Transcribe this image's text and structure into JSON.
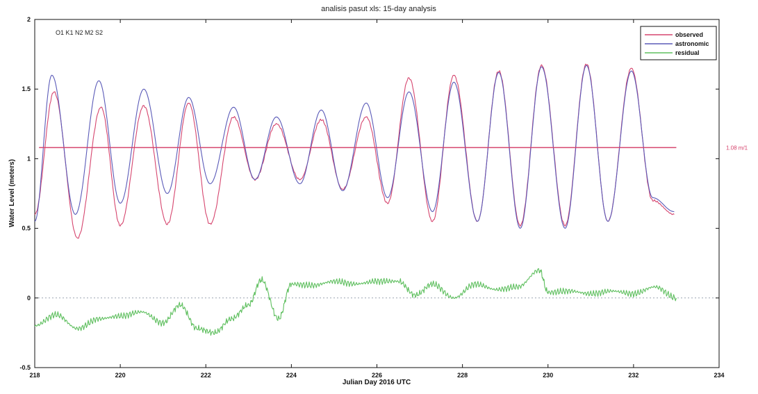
{
  "chart_data": {
    "type": "line",
    "title": "analisis pasut xls: 15-day analysis",
    "constituents_label": "O1 K1 N2 M2 S2",
    "xlabel": "Julian Day 2016 UTC",
    "ylabel": "Water Level (meters)",
    "xlim": [
      218,
      234
    ],
    "ylim": [
      -0.5,
      2
    ],
    "xticks": [
      218,
      220,
      222,
      224,
      226,
      228,
      230,
      232,
      234
    ],
    "yticks": [
      -0.5,
      0,
      0.5,
      1,
      1.5,
      2
    ],
    "ytick_labels": [
      "-0.5",
      "0",
      "0.5",
      "1",
      "1.5",
      "2"
    ],
    "grid": false,
    "legend_position": "top-right",
    "mean_level": 1.08,
    "mean_label": "1.08 m/1",
    "series": [
      {
        "name": "observed",
        "color": "#d6456e",
        "x": [
          218,
          218.45,
          219.0,
          219.55,
          220.0,
          220.55,
          221.1,
          221.6,
          222.1,
          222.65,
          223.15,
          223.65,
          224.2,
          224.7,
          225.2,
          225.75,
          226.25,
          226.75,
          227.3,
          227.8,
          228.35,
          228.85,
          229.35,
          229.85,
          230.4,
          230.9,
          231.4,
          231.95,
          232.45,
          232.95
        ],
        "values": [
          0.6,
          1.48,
          0.43,
          1.37,
          0.52,
          1.38,
          0.53,
          1.4,
          0.53,
          1.3,
          0.85,
          1.25,
          0.85,
          1.28,
          0.78,
          1.3,
          0.68,
          1.58,
          0.55,
          1.6,
          0.55,
          1.63,
          0.52,
          1.67,
          0.52,
          1.68,
          0.55,
          1.65,
          0.7,
          0.6
        ]
      },
      {
        "name": "astronomic",
        "color": "#5a5ab8",
        "x": [
          218,
          218.4,
          218.95,
          219.5,
          220.0,
          220.55,
          221.1,
          221.6,
          222.1,
          222.65,
          223.15,
          223.65,
          224.2,
          224.7,
          225.2,
          225.75,
          226.25,
          226.75,
          227.3,
          227.8,
          228.35,
          228.85,
          229.35,
          229.85,
          230.4,
          230.9,
          231.4,
          231.95,
          232.45,
          232.95
        ],
        "values": [
          0.55,
          1.6,
          0.6,
          1.56,
          0.68,
          1.5,
          0.75,
          1.44,
          0.82,
          1.37,
          0.85,
          1.3,
          0.82,
          1.35,
          0.77,
          1.4,
          0.72,
          1.48,
          0.62,
          1.55,
          0.55,
          1.62,
          0.5,
          1.66,
          0.5,
          1.67,
          0.55,
          1.63,
          0.72,
          0.62
        ]
      },
      {
        "name": "residual",
        "color": "#5fbf5f",
        "x": [
          218,
          218.5,
          219.0,
          219.5,
          220.0,
          220.5,
          221.0,
          221.4,
          221.8,
          222.2,
          222.6,
          223.0,
          223.3,
          223.7,
          224.0,
          224.5,
          225.0,
          225.5,
          226.0,
          226.5,
          226.9,
          227.3,
          227.8,
          228.3,
          228.8,
          229.3,
          229.8,
          230.0,
          230.5,
          231.0,
          231.5,
          232.0,
          232.5,
          233.0
        ],
        "values": [
          -0.2,
          -0.12,
          -0.22,
          -0.15,
          -0.13,
          -0.1,
          -0.18,
          -0.05,
          -0.22,
          -0.25,
          -0.15,
          -0.05,
          0.13,
          -0.15,
          0.1,
          0.09,
          0.12,
          0.1,
          0.12,
          0.12,
          0.02,
          0.1,
          0.0,
          0.1,
          0.06,
          0.08,
          0.2,
          0.04,
          0.05,
          0.03,
          0.05,
          0.03,
          0.08,
          0.0
        ]
      }
    ]
  },
  "colors": {
    "axis": "#111111",
    "zero_line": "#9aa3b0"
  }
}
